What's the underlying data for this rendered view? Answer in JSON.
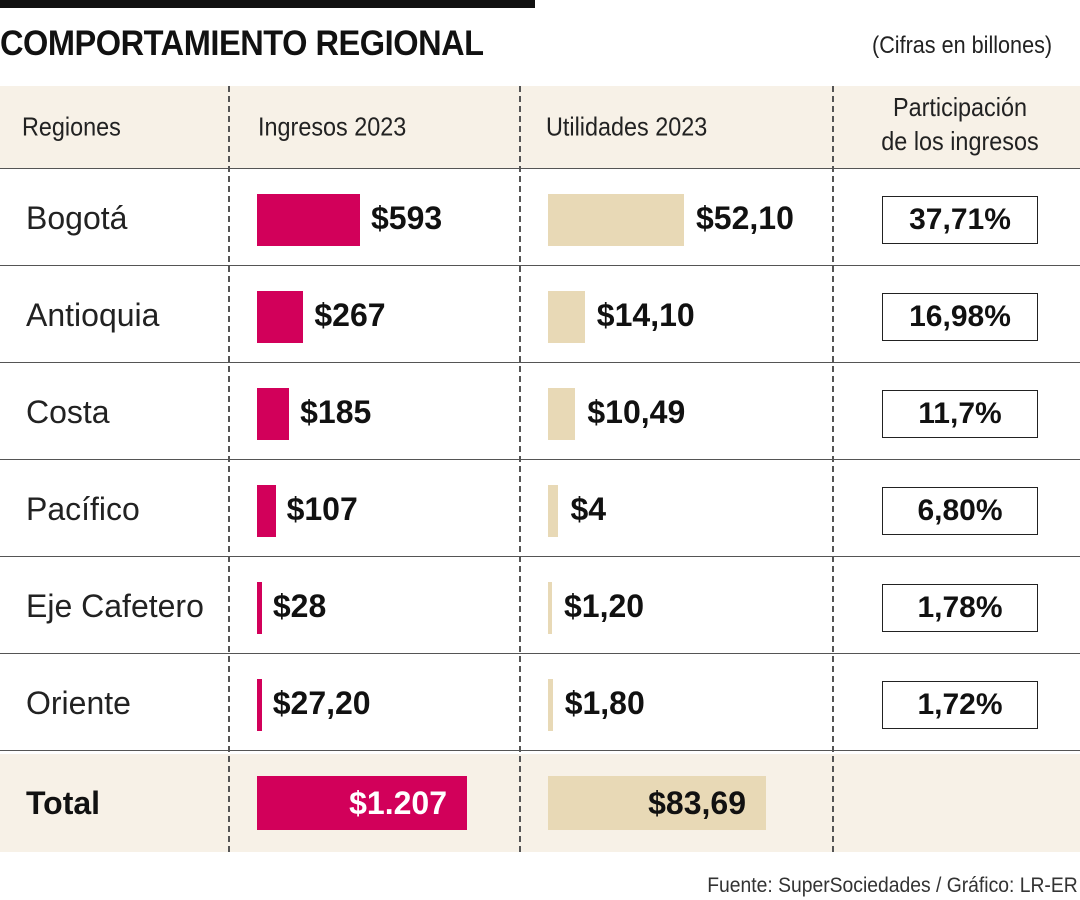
{
  "title": "COMPORTAMIENTO REGIONAL",
  "units_note": "(Cifras en billones)",
  "columns": {
    "region": "Regiones",
    "ingresos": "Ingresos 2023",
    "utilidades": "Utilidades 2023",
    "participacion_line1": "Participación",
    "participacion_line2": "de los ingresos"
  },
  "colors": {
    "ingresos": "#d2005a",
    "utilidades": "#e8d9b6",
    "band": "#f7f1e7"
  },
  "rows": [
    {
      "region": "Bogotá",
      "ingresos_label": "$593",
      "utilidades_label": "$52,10",
      "participacion": "37,71%"
    },
    {
      "region": "Antioquia",
      "ingresos_label": "$267",
      "utilidades_label": "$14,10",
      "participacion": "16,98%"
    },
    {
      "region": "Costa",
      "ingresos_label": "$185",
      "utilidades_label": "$10,49",
      "participacion": "11,7%"
    },
    {
      "region": "Pacífico",
      "ingresos_label": "$107",
      "utilidades_label": "$4",
      "participacion": "6,80%"
    },
    {
      "region": "Eje Cafetero",
      "ingresos_label": "$28",
      "utilidades_label": "$1,20",
      "participacion": "1,78%"
    },
    {
      "region": "Oriente",
      "ingresos_label": "$27,20",
      "utilidades_label": "$1,80",
      "participacion": "1,72%"
    }
  ],
  "total": {
    "label": "Total",
    "ingresos_label": "$1.207",
    "utilidades_label": "$83,69"
  },
  "source": "Fuente: SuperSociedades / Gráfico: LR-ER",
  "chart_data": {
    "type": "bar",
    "title": "COMPORTAMIENTO REGIONAL",
    "subtitle": "(Cifras en billones)",
    "categories": [
      "Bogotá",
      "Antioquia",
      "Costa",
      "Pacífico",
      "Eje Cafetero",
      "Oriente"
    ],
    "series": [
      {
        "name": "Ingresos 2023",
        "values": [
          593,
          267,
          185,
          107,
          28,
          27.2
        ]
      },
      {
        "name": "Utilidades 2023",
        "values": [
          52.1,
          14.1,
          10.49,
          4,
          1.2,
          1.8
        ]
      },
      {
        "name": "Participación de los ingresos",
        "values": [
          37.71,
          16.98,
          11.7,
          6.8,
          1.78,
          1.72
        ]
      }
    ],
    "totals": {
      "Ingresos 2023": 1207,
      "Utilidades 2023": 83.69
    }
  }
}
